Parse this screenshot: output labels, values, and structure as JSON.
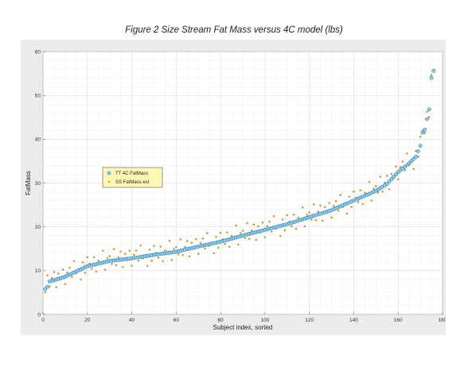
{
  "page": {
    "title": "Figure 2 Size Stream Fat Mass versus 4C model (lbs)"
  },
  "chart_data": {
    "type": "scatter",
    "title": "",
    "xlabel": "Subject index, sorted",
    "ylabel": "FatMass",
    "xlim": [
      0,
      180
    ],
    "ylim": [
      0,
      60
    ],
    "xticks": [
      0,
      20,
      40,
      60,
      80,
      100,
      120,
      140,
      160,
      180
    ],
    "yticks": [
      0,
      10,
      20,
      30,
      40,
      50,
      60
    ],
    "grid": true,
    "minor_grid": true,
    "legend_position": "left-middle",
    "series": [
      {
        "name": "TT 4C FatMass",
        "marker": "open-circle",
        "color": "#1f6fb4",
        "fill": "#8fd0ec",
        "anchors": [
          [
            1,
            5.8
          ],
          [
            2,
            6.3
          ],
          [
            3,
            7.5
          ],
          [
            10,
            8.6
          ],
          [
            20,
            11.0
          ],
          [
            30,
            12.2
          ],
          [
            40,
            12.8
          ],
          [
            50,
            13.6
          ],
          [
            60,
            14.3
          ],
          [
            70,
            15.5
          ],
          [
            80,
            16.6
          ],
          [
            90,
            18.0
          ],
          [
            100,
            19.3
          ],
          [
            110,
            20.6
          ],
          [
            120,
            22.2
          ],
          [
            130,
            23.8
          ],
          [
            140,
            26.0
          ],
          [
            150,
            28.2
          ],
          [
            155,
            29.8
          ],
          [
            160,
            32.5
          ],
          [
            165,
            34.5
          ],
          [
            168,
            36.0
          ],
          [
            170,
            38.5
          ],
          [
            171,
            41.5
          ],
          [
            172,
            42.2
          ],
          [
            173,
            44.6
          ],
          [
            174,
            46.8
          ],
          [
            175,
            54.0
          ],
          [
            176,
            55.6
          ]
        ]
      },
      {
        "name": "SS FatMass est",
        "marker": "dot",
        "color": "#d99a2b",
        "offsets": [
          1.8,
          -0.9,
          2.6,
          -1.6,
          0.7,
          3.1,
          -2.2,
          1.2,
          -0.4,
          2.0,
          -2.8,
          0.9,
          1.6,
          -1.1,
          2.9,
          -0.6,
          0.3,
          -2.3,
          1.9,
          -1.4,
          3.4,
          0.5,
          -0.8,
          2.4,
          -1.9,
          1.1,
          -0.2,
          2.7,
          -2.5,
          0.8
        ]
      }
    ]
  }
}
